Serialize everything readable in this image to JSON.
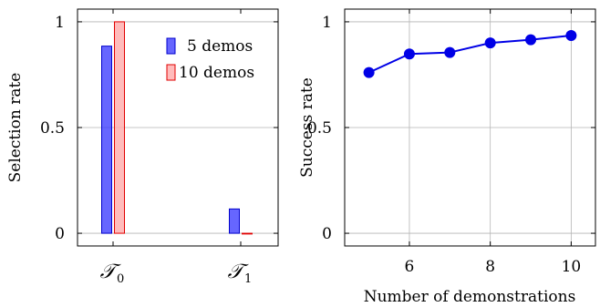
{
  "chart_data": [
    {
      "type": "bar",
      "categories": [
        "T0",
        "T1"
      ],
      "category_labels": [
        {
          "main": "𝒯",
          "subscript": "0"
        },
        {
          "main": "𝒯",
          "subscript": "1"
        }
      ],
      "series": [
        {
          "name": "5 demos",
          "values": [
            0.885,
            0.115
          ],
          "color": "#3333ff"
        },
        {
          "name": "10 demos",
          "values": [
            1.0,
            0.0
          ],
          "color": "#ffaaaa"
        }
      ],
      "ylabel": "Selection rate",
      "xlabel": "",
      "ylim": [
        -0.06,
        1.06
      ],
      "yticks": [
        0,
        0.5,
        1
      ],
      "ytick_labels": [
        "0",
        "0.5",
        "1"
      ],
      "grid": "horizontal",
      "legend": "top-right"
    },
    {
      "type": "line",
      "x": [
        5,
        6,
        7,
        8,
        9,
        10
      ],
      "y": [
        0.76,
        0.848,
        0.855,
        0.9,
        0.915,
        0.935
      ],
      "color": "#0000e6",
      "xlabel": "Number of demonstrations",
      "ylabel": "Success rate",
      "xlim": [
        4.4,
        10.6
      ],
      "ylim": [
        -0.06,
        1.06
      ],
      "xticks": [
        6,
        8,
        10
      ],
      "xtick_labels": [
        "6",
        "8",
        "10"
      ],
      "yticks": [
        0,
        0.5,
        1
      ],
      "ytick_labels": [
        "0",
        "0.5",
        "1"
      ],
      "grid": "both"
    }
  ]
}
